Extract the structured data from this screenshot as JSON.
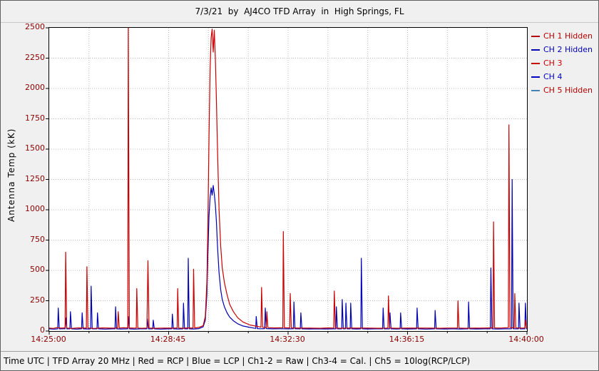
{
  "window": {
    "status_bar": "Time UTC | TFD Array 20 MHz | Red = RCP | Blue = LCP | Ch1-2 = Raw | Ch3-4 = Cal. | Ch5 = 10log(RCP/LCP)"
  },
  "colors": {
    "red_trace": "#b40000",
    "blue_trace": "#0000b4",
    "tick_label": "#8b0000",
    "grid": "#b8b8b8",
    "plot_bg": "#ffffff",
    "frame_bg": "#f0f0f0"
  },
  "chart_data": {
    "type": "line",
    "title": "7/3/21  by  AJ4CO TFD Array  in  High Springs, FL",
    "xlabel": "Time UTC",
    "ylabel": "Antenna Temp (kK)",
    "x_range_seconds": [
      0,
      900
    ],
    "xticks": [
      {
        "t": 0,
        "label": "14:25:00"
      },
      {
        "t": 225,
        "label": "14:28:45"
      },
      {
        "t": 450,
        "label": "14:32:30"
      },
      {
        "t": 675,
        "label": "14:36:15"
      },
      {
        "t": 900,
        "label": "14:40:00"
      }
    ],
    "x_minor_interval": 75,
    "ylim": [
      0,
      2500
    ],
    "ytick_interval": 250,
    "grid": true,
    "legend_position": "right",
    "legend": [
      {
        "label": "CH 1 Hidden",
        "color": "#b40000",
        "text_color": "#b40000"
      },
      {
        "label": "CH 2 Hidden",
        "color": "#0000b4",
        "text_color": "#0000b4"
      },
      {
        "label": "CH 3",
        "color": "#c80000",
        "text_color": "#c80000"
      },
      {
        "label": "CH 4",
        "color": "#0000c8",
        "text_color": "#0000c8"
      },
      {
        "label": "CH 5 Hidden",
        "color": "#4682b4",
        "text_color": "#b40000"
      }
    ],
    "series": [
      {
        "name": "CH 4",
        "color": "#0000b4",
        "points": [
          [
            0,
            18
          ],
          [
            10,
            16
          ],
          [
            16,
            18
          ],
          [
            17,
            190
          ],
          [
            19,
            18
          ],
          [
            30,
            19
          ],
          [
            31,
            110
          ],
          [
            33,
            18
          ],
          [
            39,
            18
          ],
          [
            40,
            160
          ],
          [
            42,
            18
          ],
          [
            52,
            16
          ],
          [
            61,
            18
          ],
          [
            62,
            150
          ],
          [
            64,
            18
          ],
          [
            72,
            17
          ],
          [
            78,
            18
          ],
          [
            79,
            370
          ],
          [
            81,
            18
          ],
          [
            90,
            18
          ],
          [
            91,
            150
          ],
          [
            93,
            18
          ],
          [
            105,
            16
          ],
          [
            118,
            18
          ],
          [
            124,
            18
          ],
          [
            125,
            200
          ],
          [
            127,
            18
          ],
          [
            135,
            17
          ],
          [
            148,
            18
          ],
          [
            149,
            120
          ],
          [
            151,
            18
          ],
          [
            160,
            16
          ],
          [
            172,
            18
          ],
          [
            184,
            18
          ],
          [
            185,
            100
          ],
          [
            187,
            18
          ],
          [
            195,
            18
          ],
          [
            196,
            90
          ],
          [
            198,
            18
          ],
          [
            210,
            16
          ],
          [
            225,
            18
          ],
          [
            231,
            18
          ],
          [
            232,
            140
          ],
          [
            234,
            18
          ],
          [
            244,
            17
          ],
          [
            252,
            18
          ],
          [
            253,
            230
          ],
          [
            255,
            18
          ],
          [
            261,
            18
          ],
          [
            262,
            600
          ],
          [
            264,
            18
          ],
          [
            272,
            17
          ],
          [
            282,
            20
          ],
          [
            290,
            35
          ],
          [
            294,
            90
          ],
          [
            297,
            300
          ],
          [
            299,
            650
          ],
          [
            301,
            950
          ],
          [
            303,
            1100
          ],
          [
            305,
            1180
          ],
          [
            307,
            1120
          ],
          [
            309,
            1200
          ],
          [
            311,
            1130
          ],
          [
            313,
            1040
          ],
          [
            315,
            900
          ],
          [
            317,
            700
          ],
          [
            320,
            480
          ],
          [
            323,
            340
          ],
          [
            326,
            260
          ],
          [
            330,
            200
          ],
          [
            335,
            150
          ],
          [
            340,
            115
          ],
          [
            347,
            85
          ],
          [
            355,
            60
          ],
          [
            365,
            42
          ],
          [
            378,
            30
          ],
          [
            389,
            22
          ],
          [
            390,
            120
          ],
          [
            392,
            20
          ],
          [
            400,
            19
          ],
          [
            406,
            20
          ],
          [
            407,
            190
          ],
          [
            409,
            20
          ],
          [
            420,
            18
          ],
          [
            435,
            19
          ],
          [
            450,
            18
          ],
          [
            460,
            19
          ],
          [
            461,
            240
          ],
          [
            463,
            19
          ],
          [
            473,
            18
          ],
          [
            474,
            150
          ],
          [
            476,
            18
          ],
          [
            490,
            17
          ],
          [
            505,
            18
          ],
          [
            520,
            17
          ],
          [
            535,
            18
          ],
          [
            540,
            18
          ],
          [
            541,
            200
          ],
          [
            543,
            18
          ],
          [
            551,
            18
          ],
          [
            552,
            260
          ],
          [
            554,
            18
          ],
          [
            558,
            18
          ],
          [
            559,
            230
          ],
          [
            561,
            18
          ],
          [
            567,
            18
          ],
          [
            568,
            230
          ],
          [
            570,
            18
          ],
          [
            580,
            17
          ],
          [
            587,
            18
          ],
          [
            588,
            600
          ],
          [
            590,
            18
          ],
          [
            600,
            17
          ],
          [
            615,
            18
          ],
          [
            628,
            18
          ],
          [
            629,
            190
          ],
          [
            631,
            18
          ],
          [
            641,
            18
          ],
          [
            642,
            150
          ],
          [
            644,
            18
          ],
          [
            655,
            17
          ],
          [
            661,
            18
          ],
          [
            662,
            150
          ],
          [
            664,
            18
          ],
          [
            675,
            17
          ],
          [
            692,
            18
          ],
          [
            693,
            190
          ],
          [
            695,
            18
          ],
          [
            710,
            16
          ],
          [
            726,
            18
          ],
          [
            727,
            170
          ],
          [
            729,
            18
          ],
          [
            745,
            17
          ],
          [
            760,
            18
          ],
          [
            775,
            17
          ],
          [
            789,
            18
          ],
          [
            790,
            240
          ],
          [
            792,
            18
          ],
          [
            805,
            17
          ],
          [
            820,
            18
          ],
          [
            831,
            18
          ],
          [
            832,
            520
          ],
          [
            834,
            18
          ],
          [
            845,
            17
          ],
          [
            858,
            18
          ],
          [
            871,
            19
          ],
          [
            872,
            1250
          ],
          [
            874,
            19
          ],
          [
            884,
            18
          ],
          [
            885,
            230
          ],
          [
            887,
            18
          ],
          [
            896,
            18
          ],
          [
            897,
            230
          ],
          [
            899,
            18
          ],
          [
            900,
            18
          ]
        ]
      },
      {
        "name": "CH 3",
        "color": "#c80000",
        "points": [
          [
            0,
            25
          ],
          [
            8,
            22
          ],
          [
            14,
            28
          ],
          [
            22,
            24
          ],
          [
            30,
            26
          ],
          [
            31,
            650
          ],
          [
            33,
            25
          ],
          [
            42,
            22
          ],
          [
            55,
            26
          ],
          [
            70,
            24
          ],
          [
            71,
            530
          ],
          [
            73,
            25
          ],
          [
            85,
            22
          ],
          [
            100,
            26
          ],
          [
            115,
            24
          ],
          [
            129,
            25
          ],
          [
            130,
            160
          ],
          [
            132,
            25
          ],
          [
            140,
            27
          ],
          [
            148,
            26
          ],
          [
            149,
            2500
          ],
          [
            151,
            26
          ],
          [
            158,
            24
          ],
          [
            164,
            25
          ],
          [
            165,
            350
          ],
          [
            167,
            25
          ],
          [
            175,
            23
          ],
          [
            184,
            25
          ],
          [
            186,
            580
          ],
          [
            188,
            25
          ],
          [
            200,
            23
          ],
          [
            215,
            25
          ],
          [
            230,
            24
          ],
          [
            241,
            25
          ],
          [
            242,
            350
          ],
          [
            244,
            25
          ],
          [
            252,
            23
          ],
          [
            262,
            26
          ],
          [
            271,
            25
          ],
          [
            272,
            510
          ],
          [
            274,
            26
          ],
          [
            282,
            30
          ],
          [
            290,
            45
          ],
          [
            294,
            120
          ],
          [
            297,
            400
          ],
          [
            299,
            900
          ],
          [
            301,
            1600
          ],
          [
            303,
            2150
          ],
          [
            305,
            2420
          ],
          [
            307,
            2490
          ],
          [
            309,
            2300
          ],
          [
            311,
            2480
          ],
          [
            313,
            2250
          ],
          [
            315,
            1900
          ],
          [
            317,
            1500
          ],
          [
            320,
            1000
          ],
          [
            323,
            700
          ],
          [
            326,
            520
          ],
          [
            330,
            400
          ],
          [
            335,
            300
          ],
          [
            340,
            220
          ],
          [
            347,
            160
          ],
          [
            355,
            110
          ],
          [
            365,
            75
          ],
          [
            378,
            50
          ],
          [
            392,
            38
          ],
          [
            399,
            32
          ],
          [
            400,
            360
          ],
          [
            402,
            30
          ],
          [
            409,
            28
          ],
          [
            410,
            160
          ],
          [
            412,
            28
          ],
          [
            425,
            26
          ],
          [
            440,
            27
          ],
          [
            441,
            820
          ],
          [
            443,
            27
          ],
          [
            453,
            26
          ],
          [
            454,
            310
          ],
          [
            456,
            26
          ],
          [
            470,
            24
          ],
          [
            490,
            25
          ],
          [
            510,
            23
          ],
          [
            525,
            26
          ],
          [
            536,
            25
          ],
          [
            537,
            330
          ],
          [
            539,
            25
          ],
          [
            550,
            23
          ],
          [
            565,
            25
          ],
          [
            580,
            24
          ],
          [
            600,
            25
          ],
          [
            620,
            23
          ],
          [
            638,
            25
          ],
          [
            639,
            290
          ],
          [
            641,
            25
          ],
          [
            655,
            23
          ],
          [
            675,
            25
          ],
          [
            695,
            24
          ],
          [
            715,
            25
          ],
          [
            735,
            23
          ],
          [
            750,
            25
          ],
          [
            769,
            25
          ],
          [
            770,
            250
          ],
          [
            772,
            25
          ],
          [
            785,
            23
          ],
          [
            800,
            25
          ],
          [
            815,
            24
          ],
          [
            830,
            26
          ],
          [
            836,
            26
          ],
          [
            837,
            900
          ],
          [
            839,
            26
          ],
          [
            850,
            25
          ],
          [
            865,
            28
          ],
          [
            866,
            1700
          ],
          [
            868,
            28
          ],
          [
            876,
            26
          ],
          [
            877,
            310
          ],
          [
            879,
            26
          ],
          [
            888,
            25
          ],
          [
            896,
            25
          ],
          [
            897,
            90
          ],
          [
            899,
            25
          ],
          [
            900,
            25
          ]
        ]
      }
    ]
  }
}
